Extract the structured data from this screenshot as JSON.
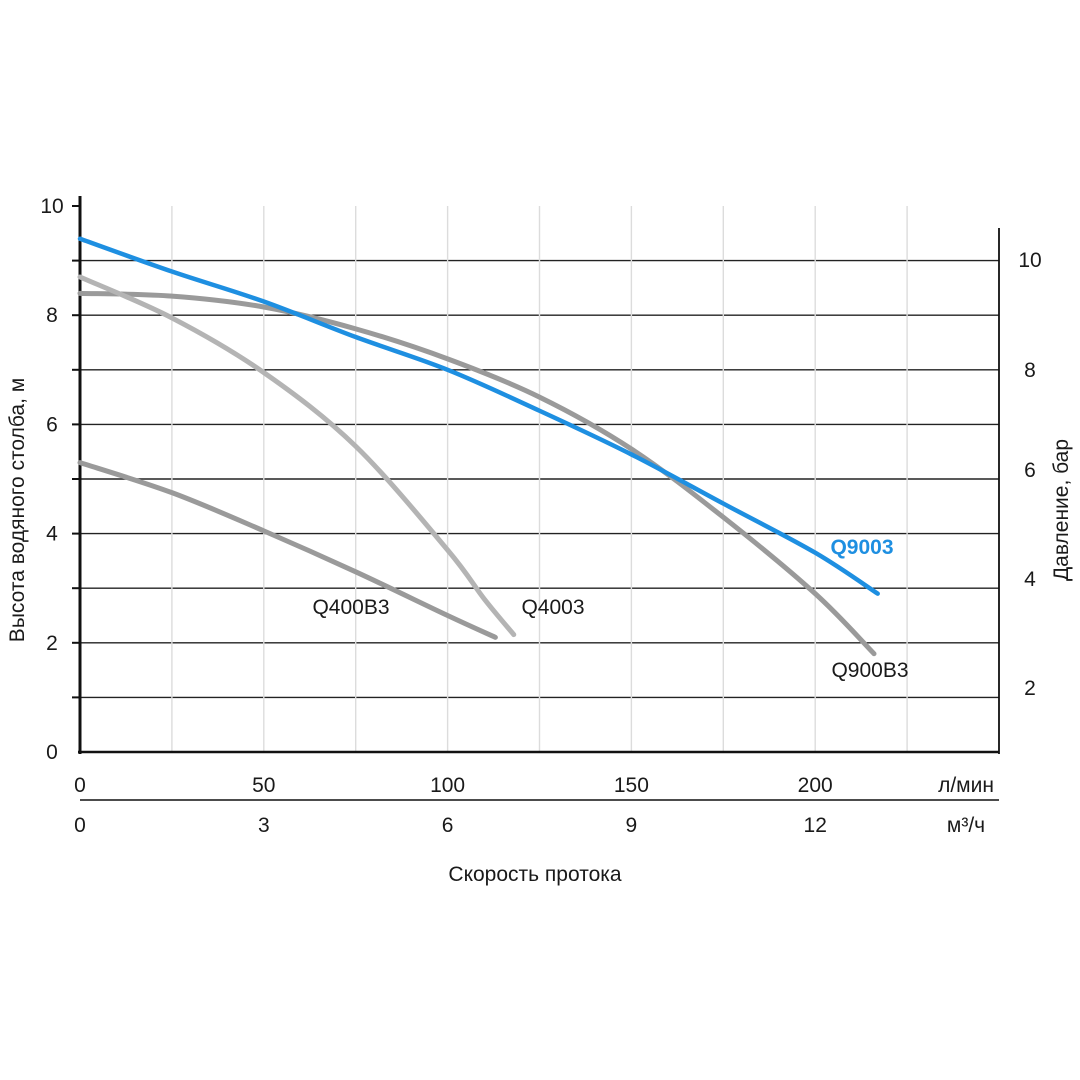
{
  "chart_data": {
    "type": "line",
    "y_left": {
      "label": "Высота водяного столба, м",
      "range": [
        0,
        10
      ],
      "ticks": [
        "0",
        "2",
        "4",
        "6",
        "8",
        "10"
      ]
    },
    "y_right": {
      "label": "Давление, бар",
      "ticks": [
        "2",
        "4",
        "6",
        "8",
        "10"
      ]
    },
    "x_primary": {
      "unit": "л/мин",
      "range": [
        0,
        250
      ],
      "ticks": [
        "0",
        "50",
        "100",
        "150",
        "200"
      ]
    },
    "x_secondary": {
      "unit": "м³/ч",
      "ticks": [
        "0",
        "3",
        "6",
        "9",
        "12"
      ]
    },
    "xlabel": "Скорость протока",
    "grid": true,
    "series": [
      {
        "name": "Q9003",
        "color": "#1e8fe1",
        "highlight": true,
        "points": [
          [
            0,
            9.4
          ],
          [
            25,
            8.8
          ],
          [
            50,
            8.25
          ],
          [
            75,
            7.6
          ],
          [
            100,
            7.0
          ],
          [
            125,
            6.25
          ],
          [
            150,
            5.45
          ],
          [
            175,
            4.55
          ],
          [
            200,
            3.65
          ],
          [
            217,
            2.9
          ]
        ]
      },
      {
        "name": "Q900B3",
        "color": "#9a9a9a",
        "points": [
          [
            0,
            8.4
          ],
          [
            25,
            8.35
          ],
          [
            50,
            8.15
          ],
          [
            75,
            7.75
          ],
          [
            100,
            7.2
          ],
          [
            125,
            6.5
          ],
          [
            150,
            5.55
          ],
          [
            175,
            4.3
          ],
          [
            200,
            2.9
          ],
          [
            216,
            1.8
          ]
        ]
      },
      {
        "name": "Q4003",
        "color": "#b4b4b4",
        "points": [
          [
            0,
            8.7
          ],
          [
            25,
            7.95
          ],
          [
            50,
            6.95
          ],
          [
            75,
            5.6
          ],
          [
            100,
            3.7
          ],
          [
            110,
            2.8
          ],
          [
            118,
            2.15
          ]
        ]
      },
      {
        "name": "Q400B3",
        "color": "#9a9a9a",
        "points": [
          [
            0,
            5.3
          ],
          [
            25,
            4.75
          ],
          [
            50,
            4.05
          ],
          [
            75,
            3.3
          ],
          [
            100,
            2.5
          ],
          [
            113,
            2.1
          ]
        ]
      }
    ],
    "series_labels": {
      "Q9003": "Q9003",
      "Q900B3": "Q900B3",
      "Q4003": "Q4003",
      "Q400B3": "Q400B3"
    }
  }
}
